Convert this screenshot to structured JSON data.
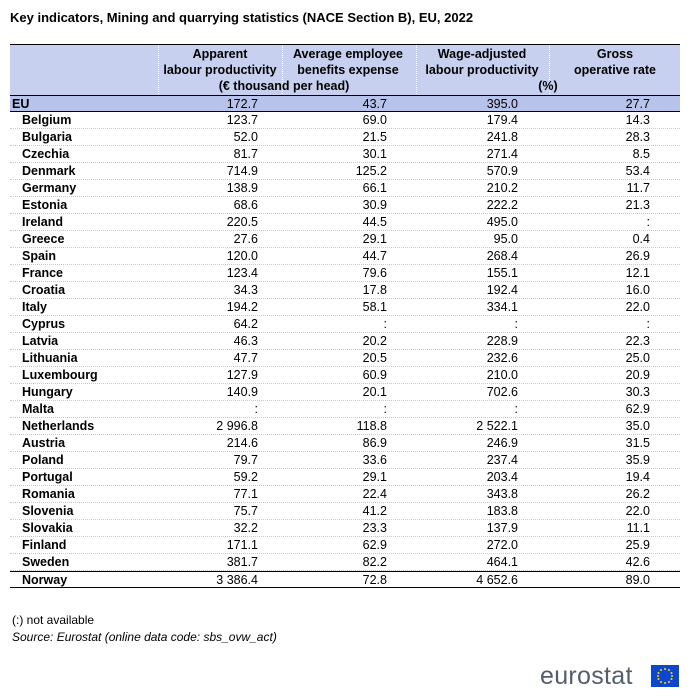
{
  "title": "Key indicators, Mining and quarrying statistics (NACE Section B), EU, 2022",
  "header": {
    "columns": [
      [
        "Apparent",
        "labour productivity"
      ],
      [
        "Average employee",
        "benefits expense"
      ],
      [
        "Wage-adjusted",
        "labour productivity"
      ],
      [
        "Gross",
        "operative rate"
      ]
    ],
    "units": [
      "(€ thousand per head)",
      "(%)"
    ]
  },
  "table": {
    "rows": [
      [
        "EU",
        "172.7",
        "43.7",
        "395.0",
        "27.7"
      ],
      [
        "Belgium",
        "123.7",
        "69.0",
        "179.4",
        "14.3"
      ],
      [
        "Bulgaria",
        "52.0",
        "21.5",
        "241.8",
        "28.3"
      ],
      [
        "Czechia",
        "81.7",
        "30.1",
        "271.4",
        "8.5"
      ],
      [
        "Denmark",
        "714.9",
        "125.2",
        "570.9",
        "53.4"
      ],
      [
        "Germany",
        "138.9",
        "66.1",
        "210.2",
        "11.7"
      ],
      [
        "Estonia",
        "68.6",
        "30.9",
        "222.2",
        "21.3"
      ],
      [
        "Ireland",
        "220.5",
        "44.5",
        "495.0",
        ":"
      ],
      [
        "Greece",
        "27.6",
        "29.1",
        "95.0",
        "0.4"
      ],
      [
        "Spain",
        "120.0",
        "44.7",
        "268.4",
        "26.9"
      ],
      [
        "France",
        "123.4",
        "79.6",
        "155.1",
        "12.1"
      ],
      [
        "Croatia",
        "34.3",
        "17.8",
        "192.4",
        "16.0"
      ],
      [
        "Italy",
        "194.2",
        "58.1",
        "334.1",
        "22.0"
      ],
      [
        "Cyprus",
        "64.2",
        ":",
        ":",
        ":"
      ],
      [
        "Latvia",
        "46.3",
        "20.2",
        "228.9",
        "22.3"
      ],
      [
        "Lithuania",
        "47.7",
        "20.5",
        "232.6",
        "25.0"
      ],
      [
        "Luxembourg",
        "127.9",
        "60.9",
        "210.0",
        "20.9"
      ],
      [
        "Hungary",
        "140.9",
        "20.1",
        "702.6",
        "30.3"
      ],
      [
        "Malta",
        ":",
        ":",
        ":",
        "62.9"
      ],
      [
        "Netherlands",
        "2 996.8",
        "118.8",
        "2 522.1",
        "35.0"
      ],
      [
        "Austria",
        "214.6",
        "86.9",
        "246.9",
        "31.5"
      ],
      [
        "Poland",
        "79.7",
        "33.6",
        "237.4",
        "35.9"
      ],
      [
        "Portugal",
        "59.2",
        "29.1",
        "203.4",
        "19.4"
      ],
      [
        "Romania",
        "77.1",
        "22.4",
        "343.8",
        "26.2"
      ],
      [
        "Slovenia",
        "75.7",
        "41.2",
        "183.8",
        "22.0"
      ],
      [
        "Slovakia",
        "32.2",
        "23.3",
        "137.9",
        "11.1"
      ],
      [
        "Finland",
        "171.1",
        "62.9",
        "272.0",
        "25.9"
      ],
      [
        "Sweden",
        "381.7",
        "82.2",
        "464.1",
        "42.6"
      ],
      [
        "Norway",
        "3 386.4",
        "72.8",
        "4 652.6",
        "89.0"
      ]
    ]
  },
  "notes": [
    "(:) not available",
    "Source: Eurostat (online data code: sbs_ovw_act)"
  ],
  "logo": "eurostat"
}
